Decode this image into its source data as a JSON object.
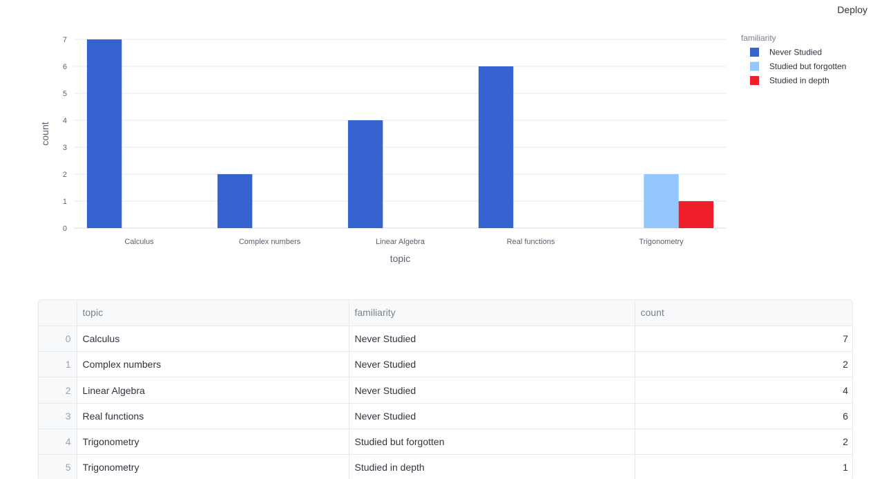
{
  "header": {
    "deploy_label": "Deploy"
  },
  "chart_data": {
    "type": "bar",
    "barmode": "group",
    "categories": [
      "Calculus",
      "Complex numbers",
      "Linear Algebra",
      "Real functions",
      "Trigonometry"
    ],
    "series": [
      {
        "name": "Never Studied",
        "color": "#3563cf",
        "values": [
          7,
          2,
          4,
          6,
          0
        ]
      },
      {
        "name": "Studied but forgotten",
        "color": "#93c6fd",
        "values": [
          0,
          0,
          0,
          0,
          2
        ]
      },
      {
        "name": "Studied in depth",
        "color": "#ee1e2b",
        "values": [
          0,
          0,
          0,
          0,
          1
        ]
      }
    ],
    "xlabel": "topic",
    "ylabel": "count",
    "ylim": [
      0,
      7
    ],
    "yticks": [
      0,
      1,
      2,
      3,
      4,
      5,
      6,
      7
    ],
    "grid": true,
    "legend_title": "familiarity",
    "legend_position": "top-right"
  },
  "table": {
    "columns": [
      "",
      "topic",
      "familiarity",
      "count"
    ],
    "rows": [
      [
        "0",
        "Calculus",
        "Never Studied",
        "7"
      ],
      [
        "1",
        "Complex numbers",
        "Never Studied",
        "2"
      ],
      [
        "2",
        "Linear Algebra",
        "Never Studied",
        "4"
      ],
      [
        "3",
        "Real functions",
        "Never Studied",
        "6"
      ],
      [
        "4",
        "Trigonometry",
        "Studied but forgotten",
        "2"
      ],
      [
        "5",
        "Trigonometry",
        "Studied in depth",
        "1"
      ]
    ]
  }
}
